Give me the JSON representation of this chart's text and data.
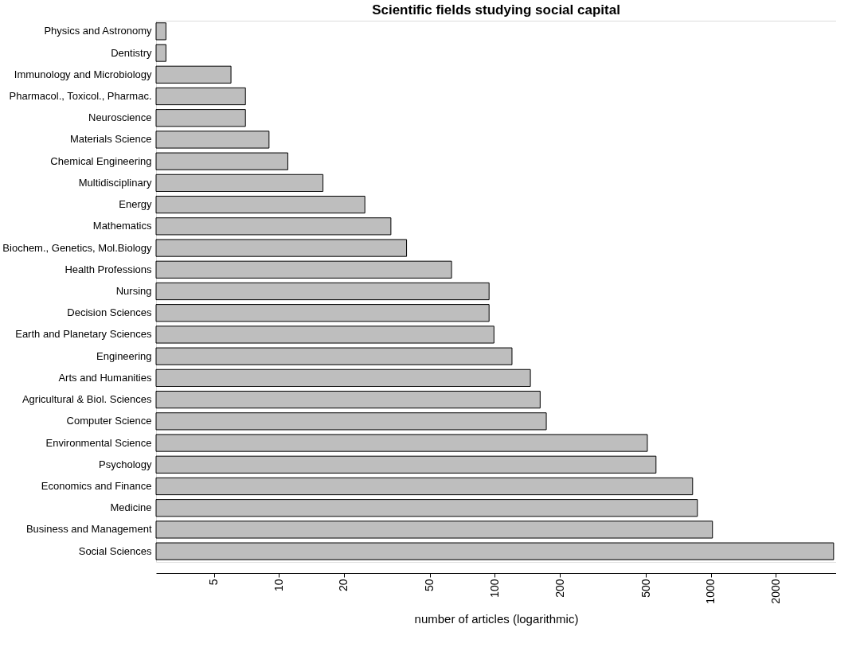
{
  "chart_data": {
    "type": "bar",
    "orientation": "horizontal",
    "title": "Scientific fields studying social capital",
    "xlabel": "number of articles (logarithmic)",
    "categories": [
      "Physics and Astronomy",
      "Dentistry",
      "Immunology and Microbiology",
      "Pharmacol., Toxicol., Pharmac.",
      "Neuroscience",
      "Materials Science",
      "Chemical Engineering",
      "Multidisciplinary",
      "Energy",
      "Mathematics",
      "Biochem., Genetics, Mol.Biology",
      "Health Professions",
      "Nursing",
      "Decision Sciences",
      "Earth and Planetary Sciences",
      "Engineering",
      "Arts and Humanities",
      "Agricultural & Biol. Sciences",
      "Computer Science",
      "Environmental Science",
      "Psychology",
      "Economics and Finance",
      "Medicine",
      "Business and Management",
      "Social Sciences"
    ],
    "values": [
      3,
      3,
      6,
      7,
      7,
      9,
      11,
      16,
      25,
      33,
      39,
      63,
      94,
      94,
      99,
      120,
      146,
      162,
      173,
      508,
      557,
      823,
      866,
      1017,
      3700
    ],
    "color": "#bebebe",
    "log": "x",
    "xlim": [
      2.7,
      3800
    ],
    "xticks": [
      5,
      10,
      20,
      50,
      100,
      200,
      500,
      1000,
      2000
    ],
    "grid": false
  }
}
